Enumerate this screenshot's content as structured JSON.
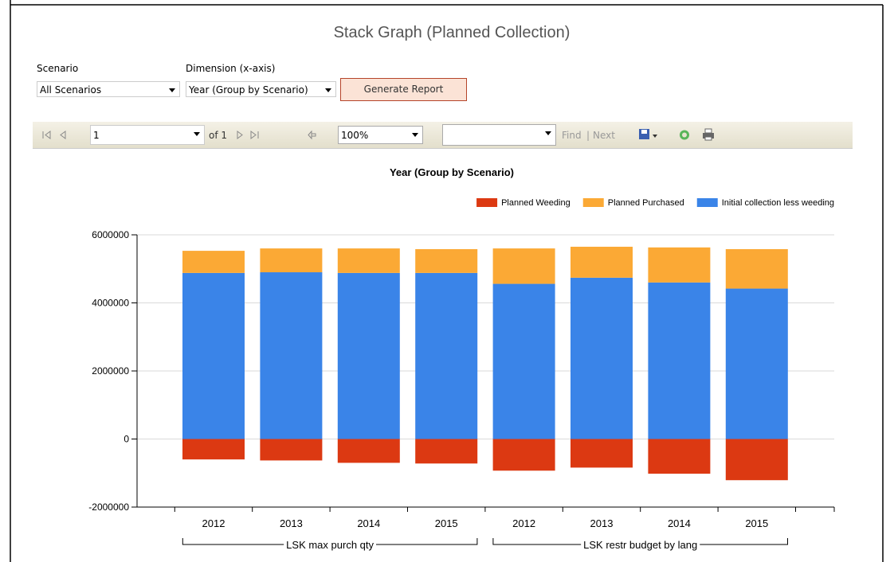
{
  "header": {
    "title": "Stack Graph (Planned Collection)"
  },
  "controls": {
    "scenario_label": "Scenario",
    "scenario_value": "All Scenarios",
    "dimension_label": "Dimension (x-axis)",
    "dimension_value": "Year (Group by Scenario)",
    "button": "Generate Report"
  },
  "toolbar": {
    "page": "1",
    "page_of": "of 1",
    "zoom": "100%",
    "find": "Find",
    "next": "Next"
  },
  "chart_data": {
    "type": "stacked_bar",
    "title": "Year (Group by Scenario)",
    "groups": [
      {
        "name": "LSK max purch qty",
        "categories": [
          "2012",
          "2013",
          "2014",
          "2015"
        ]
      },
      {
        "name": "LSK restr budget by lang",
        "categories": [
          "2012",
          "2013",
          "2014",
          "2015"
        ]
      }
    ],
    "series": [
      {
        "name": "Planned Weeding",
        "color": "#dc3912",
        "values": [
          -600000,
          -630000,
          -700000,
          -720000,
          -930000,
          -840000,
          -1020000,
          -1210000
        ]
      },
      {
        "name": "Planned Purchased",
        "color": "#fba935",
        "values": [
          650000,
          700000,
          720000,
          700000,
          1040000,
          910000,
          1030000,
          1160000
        ]
      },
      {
        "name": "Initial collection less weeding",
        "color": "#3a84e8",
        "values": [
          4880000,
          4900000,
          4880000,
          4880000,
          4560000,
          4740000,
          4600000,
          4420000
        ]
      }
    ],
    "ylim": [
      -2000000,
      6000000
    ],
    "yticks": [
      -2000000,
      0,
      2000000,
      4000000,
      6000000
    ],
    "grid": true,
    "legend": "top-right"
  }
}
